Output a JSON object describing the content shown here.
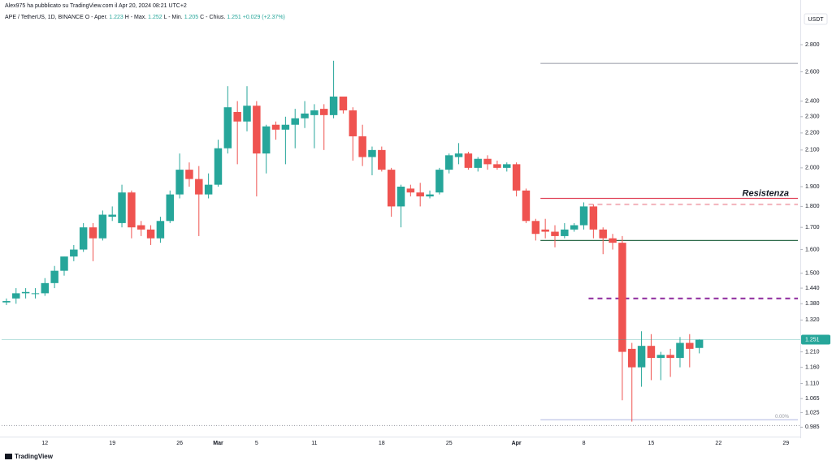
{
  "header": {
    "publisher": "Alex975 ha pubblicato su TradingView.com il Apr 20, 2024 08:21 UTC+2",
    "symbol": "APE / TetherUS, 1D, BINANCE",
    "open_label": "O - Aper.",
    "high_label": "H - Max.",
    "low_label": "L - Min.",
    "close_label": "C - Chius.",
    "change": "+0.029 (+2.37%)",
    "currency": "USDT",
    "footer": "TradingView"
  },
  "chart_data": {
    "type": "candlestick",
    "log_scale": true,
    "grid": false,
    "up_color": "#26a69a",
    "down_color": "#ef5350",
    "categories": [
      null,
      null,
      null,
      null,
      "12",
      null,
      null,
      null,
      null,
      null,
      null,
      "19",
      null,
      null,
      null,
      null,
      null,
      null,
      "26",
      null,
      null,
      null,
      "Mar",
      null,
      null,
      null,
      "5",
      null,
      null,
      null,
      null,
      null,
      "11",
      null,
      null,
      null,
      null,
      null,
      null,
      "18",
      null,
      null,
      null,
      null,
      null,
      null,
      "25",
      null,
      null,
      null,
      null,
      null,
      null,
      "Apr",
      null,
      null,
      null,
      null,
      null,
      null,
      "8",
      null,
      null,
      null,
      null,
      null,
      null,
      "15",
      null,
      null,
      null,
      null,
      null,
      null,
      "22",
      null,
      null,
      null,
      null,
      null,
      null,
      "29",
      null
    ],
    "open": [
      1.385,
      1.4,
      1.42,
      1.42,
      1.42,
      1.46,
      1.51,
      1.57,
      1.6,
      1.7,
      1.65,
      1.75,
      1.72,
      1.87,
      1.71,
      1.69,
      1.65,
      1.73,
      1.86,
      1.99,
      1.94,
      1.86,
      1.91,
      2.11,
      2.33,
      2.27,
      2.37,
      2.08,
      2.25,
      2.22,
      2.25,
      2.29,
      2.31,
      2.35,
      2.31,
      2.43,
      2.34,
      2.18,
      2.06,
      2.1,
      1.99,
      1.8,
      1.89,
      1.87,
      1.85,
      1.87,
      1.99,
      2.06,
      2.08,
      2.0,
      2.05,
      2.02,
      2.0,
      2.02,
      1.88,
      1.73,
      1.69,
      1.68,
      1.66,
      1.69,
      1.71,
      1.8,
      1.69,
      1.65,
      1.63,
      1.22,
      1.16,
      1.23,
      1.19,
      1.2,
      1.19,
      1.24,
      1.223,
      null,
      null,
      null,
      null,
      null,
      null,
      null,
      null,
      null,
      null
    ],
    "high": [
      1.4,
      1.44,
      1.44,
      1.44,
      1.48,
      1.53,
      1.57,
      1.62,
      1.72,
      1.72,
      1.78,
      1.8,
      1.91,
      1.88,
      1.73,
      1.71,
      1.75,
      1.88,
      2.08,
      2.03,
      2.01,
      1.97,
      2.16,
      2.5,
      2.4,
      2.5,
      2.4,
      2.25,
      2.27,
      2.3,
      2.35,
      2.4,
      2.38,
      2.38,
      2.68,
      2.43,
      2.36,
      2.25,
      2.12,
      2.12,
      2.0,
      1.91,
      1.91,
      1.92,
      1.88,
      2.0,
      2.08,
      2.14,
      2.09,
      2.06,
      2.07,
      2.04,
      2.03,
      2.03,
      1.89,
      1.74,
      1.74,
      1.71,
      1.72,
      1.72,
      1.82,
      1.81,
      1.7,
      1.67,
      1.66,
      1.24,
      1.28,
      1.27,
      1.21,
      1.22,
      1.26,
      1.27,
      1.252,
      null,
      null,
      null,
      null,
      null,
      null,
      null,
      null,
      null,
      null
    ],
    "low": [
      1.375,
      1.38,
      1.4,
      1.4,
      1.41,
      1.44,
      1.49,
      1.55,
      1.59,
      1.55,
      1.64,
      1.73,
      1.7,
      1.65,
      1.66,
      1.62,
      1.63,
      1.72,
      1.84,
      1.9,
      1.66,
      1.84,
      1.9,
      2.08,
      2.02,
      2.21,
      1.85,
      1.97,
      2.16,
      2.02,
      2.11,
      2.23,
      2.11,
      2.1,
      2.29,
      2.32,
      2.04,
      2.01,
      1.96,
      1.98,
      1.75,
      1.7,
      1.85,
      1.8,
      1.84,
      1.86,
      1.97,
      2.02,
      1.99,
      1.98,
      1.99,
      1.99,
      1.98,
      1.85,
      1.72,
      1.64,
      1.65,
      1.61,
      1.65,
      1.68,
      1.69,
      1.65,
      1.58,
      1.6,
      1.06,
      1.0,
      1.1,
      1.12,
      1.12,
      1.13,
      1.16,
      1.16,
      1.205,
      null,
      null,
      null,
      null,
      null,
      null,
      null,
      null,
      null,
      null
    ],
    "close": [
      1.39,
      1.42,
      1.425,
      1.42,
      1.46,
      1.51,
      1.57,
      1.6,
      1.7,
      1.65,
      1.76,
      1.76,
      1.87,
      1.7,
      1.69,
      1.65,
      1.73,
      1.86,
      1.99,
      1.94,
      1.86,
      1.91,
      2.11,
      2.36,
      2.27,
      2.37,
      2.08,
      2.24,
      2.22,
      2.25,
      2.29,
      2.32,
      2.34,
      2.31,
      2.43,
      2.34,
      2.18,
      2.06,
      2.1,
      1.99,
      1.8,
      1.9,
      1.87,
      1.85,
      1.86,
      1.99,
      2.07,
      2.08,
      2.0,
      2.05,
      2.02,
      2.0,
      2.02,
      1.88,
      1.73,
      1.67,
      1.68,
      1.66,
      1.69,
      1.71,
      1.8,
      1.69,
      1.65,
      1.63,
      1.21,
      1.16,
      1.23,
      1.19,
      1.2,
      1.19,
      1.24,
      1.22,
      1.251,
      null,
      null,
      null,
      null,
      null,
      null,
      null,
      null,
      null,
      null
    ],
    "ylim": [
      0.96,
      3.06
    ],
    "yticks": [
      {
        "value": 0.985,
        "label": "0.985"
      },
      {
        "value": 1.025,
        "label": "1.025"
      },
      {
        "value": 1.065,
        "label": "1.065"
      },
      {
        "value": 1.11,
        "label": "1.110"
      },
      {
        "value": 1.16,
        "label": "1.160"
      },
      {
        "value": 1.21,
        "label": "1.210"
      },
      {
        "value": 1.32,
        "label": "1.320"
      },
      {
        "value": 1.38,
        "label": "1.380"
      },
      {
        "value": 1.44,
        "label": "1.440"
      },
      {
        "value": 1.5,
        "label": "1.500"
      },
      {
        "value": 1.6,
        "label": "1.600"
      },
      {
        "value": 1.7,
        "label": "1.700"
      },
      {
        "value": 1.8,
        "label": "1.800"
      },
      {
        "value": 1.9,
        "label": "1.900"
      },
      {
        "value": 2.0,
        "label": "2.000"
      },
      {
        "value": 2.1,
        "label": "2.100"
      },
      {
        "value": 2.2,
        "label": "2.200"
      },
      {
        "value": 2.3,
        "label": "2.300"
      },
      {
        "value": 2.4,
        "label": "2.400"
      },
      {
        "value": 2.6,
        "label": "2.600"
      },
      {
        "value": 2.8,
        "label": "2.800"
      }
    ],
    "annotations": [
      {
        "value": 2.66,
        "x0": 56,
        "color": "#b2b5be",
        "dash": false
      },
      {
        "value": 1.84,
        "x0": 56,
        "color": "#e0455a",
        "dash": false,
        "label": "Resistenza"
      },
      {
        "value": 1.81,
        "x0": 61,
        "color": "#f2b3bb",
        "dash": true
      },
      {
        "value": 1.64,
        "x0": 56,
        "color": "#2e6b4a",
        "dash": false
      },
      {
        "value": 1.4,
        "x0": 61,
        "color": "#8e2a9e",
        "dash": true
      },
      {
        "value": 1.005,
        "x0": 56,
        "color": "#c5cae9",
        "dash": false,
        "label": "0.00%"
      }
    ]
  }
}
